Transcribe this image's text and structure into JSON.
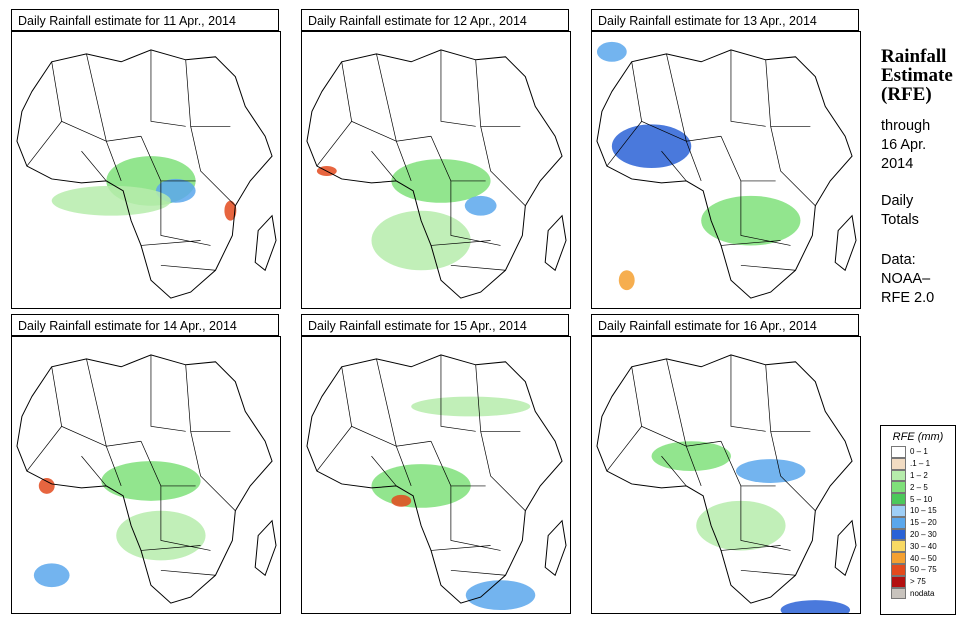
{
  "panels": [
    {
      "title": "Daily Rainfall estimate for  11 Apr., 2014"
    },
    {
      "title": "Daily Rainfall estimate for  12 Apr., 2014"
    },
    {
      "title": "Daily Rainfall estimate for  13 Apr., 2014"
    },
    {
      "title": "Daily Rainfall estimate for  14 Apr., 2014"
    },
    {
      "title": "Daily Rainfall estimate for  15 Apr., 2014"
    },
    {
      "title": "Daily Rainfall estimate for  16 Apr., 2014"
    }
  ],
  "side": {
    "title_lines": [
      "Rainfall",
      "Estimate",
      "(RFE)"
    ],
    "through_lines": [
      "through",
      "16 Apr.",
      "2014"
    ],
    "totals_lines": [
      "Daily",
      "Totals"
    ],
    "data_lines": [
      "Data:",
      "NOAA–",
      "RFE 2.0"
    ]
  },
  "legend": {
    "title": "RFE (mm)",
    "items": [
      {
        "label": "0 – 1",
        "color": "#ffffff"
      },
      {
        "label": ".1 – 1",
        "color": "#f2dcc3"
      },
      {
        "label": "1 – 2",
        "color": "#b6ecab"
      },
      {
        "label": "2 – 5",
        "color": "#7fe07a"
      },
      {
        "label": "5 – 10",
        "color": "#4cc85a"
      },
      {
        "label": "10 – 15",
        "color": "#9fcff6"
      },
      {
        "label": "15 – 20",
        "color": "#5aa7ec"
      },
      {
        "label": "20 – 30",
        "color": "#2a62d6"
      },
      {
        "label": "30 – 40",
        "color": "#f8d964"
      },
      {
        "label": "40 – 50",
        "color": "#f4a030"
      },
      {
        "label": "50 – 75",
        "color": "#e34a1d"
      },
      {
        "label": "> 75",
        "color": "#b31010"
      },
      {
        "label": "nodata",
        "color": "#c8c3bd"
      }
    ]
  }
}
